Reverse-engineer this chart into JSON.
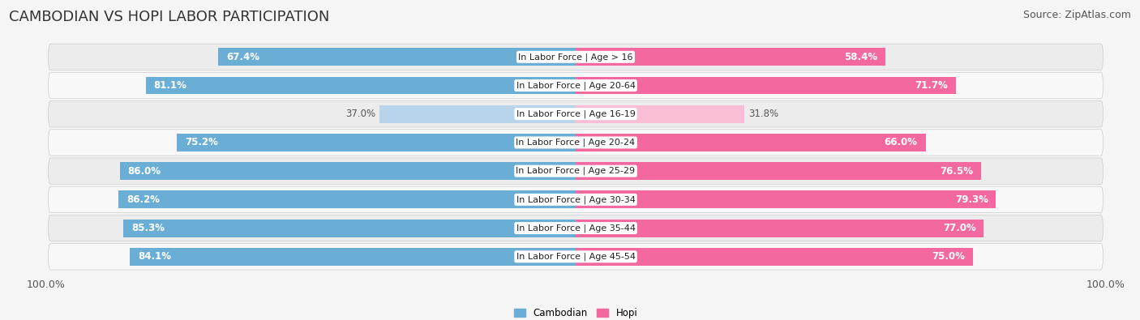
{
  "title": "CAMBODIAN VS HOPI LABOR PARTICIPATION",
  "source": "Source: ZipAtlas.com",
  "categories": [
    "In Labor Force | Age > 16",
    "In Labor Force | Age 20-64",
    "In Labor Force | Age 16-19",
    "In Labor Force | Age 20-24",
    "In Labor Force | Age 25-29",
    "In Labor Force | Age 30-34",
    "In Labor Force | Age 35-44",
    "In Labor Force | Age 45-54"
  ],
  "cambodian_values": [
    67.4,
    81.1,
    37.0,
    75.2,
    86.0,
    86.2,
    85.3,
    84.1
  ],
  "hopi_values": [
    58.4,
    71.7,
    31.8,
    66.0,
    76.5,
    79.3,
    77.0,
    75.0
  ],
  "cambodian_color": "#6aaed6",
  "hopi_color": "#f468a0",
  "cambodian_color_light": "#b8d4eb",
  "hopi_color_light": "#f9bdd5",
  "row_bg_odd": "#ececec",
  "row_bg_even": "#f8f8f8",
  "background_color": "#f5f5f5",
  "max_value": 100.0,
  "bar_height": 0.62,
  "title_fontsize": 13,
  "source_fontsize": 9,
  "label_fontsize": 8.5,
  "tick_fontsize": 9
}
